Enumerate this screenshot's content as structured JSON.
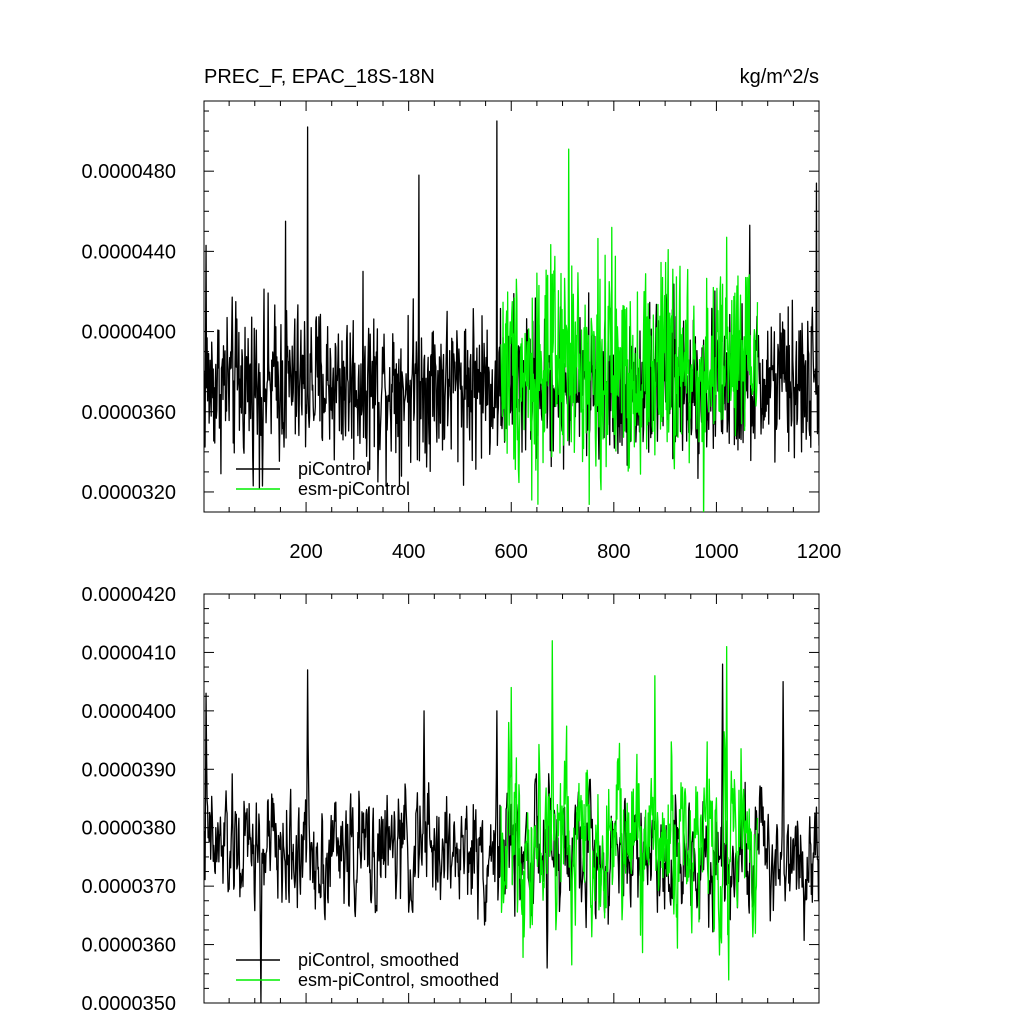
{
  "chart_data": [
    {
      "type": "line",
      "title": "PREC_F, EPAC_18S-18N",
      "units": "kg/m^2/s",
      "xlabel": "",
      "ylabel": "",
      "xlim": [
        1,
        1200
      ],
      "ylim": [
        3.1e-05,
        5.15e-05
      ],
      "xticks": [
        200,
        400,
        600,
        800,
        1000,
        1200
      ],
      "xtick_labels": [
        "200",
        "400",
        "600",
        "800",
        "1000",
        "1200"
      ],
      "yticks": [
        3.2e-05,
        3.6e-05,
        4e-05,
        4.4e-05,
        4.8e-05
      ],
      "ytick_labels": [
        "0.0000320",
        "0.0000360",
        "0.0000400",
        "0.0000440",
        "0.0000480"
      ],
      "legend_position": "bottom-left",
      "series": [
        {
          "name": "piControl",
          "color": "#000000",
          "x_range": [
            1,
            1200
          ],
          "mean": 3.74e-05,
          "noise_amplitude": 2.4e-06,
          "peaks": [
            {
              "x": 5,
              "y": 4.43e-05
            },
            {
              "x": 203,
              "y": 5.02e-05
            },
            {
              "x": 160,
              "y": 4.55e-05
            },
            {
              "x": 420,
              "y": 4.78e-05
            },
            {
              "x": 572,
              "y": 5.05e-05
            },
            {
              "x": 1065,
              "y": 4.53e-05
            },
            {
              "x": 1195,
              "y": 4.74e-05
            },
            {
              "x": 115,
              "y": 3.23e-05
            },
            {
              "x": 340,
              "y": 3.25e-05
            }
          ]
        },
        {
          "name": "esm-piControl",
          "color": "#00ee00",
          "x_range": [
            580,
            1080
          ],
          "mean": 3.82e-05,
          "noise_amplitude": 3.3e-06,
          "peaks": [
            {
              "x": 712,
              "y": 4.91e-05
            },
            {
              "x": 975,
              "y": 3.03e-05
            },
            {
              "x": 640,
              "y": 3.16e-05
            },
            {
              "x": 1020,
              "y": 4.47e-05
            }
          ]
        }
      ]
    },
    {
      "type": "line",
      "title": "",
      "xlabel": "",
      "ylabel": "",
      "xlim": [
        1,
        1200
      ],
      "ylim": [
        3.5e-05,
        4.2e-05
      ],
      "xticks": [
        200,
        400,
        600,
        800,
        1000,
        1200
      ],
      "yticks": [
        3.5e-05,
        3.6e-05,
        3.7e-05,
        3.8e-05,
        3.9e-05,
        4e-05,
        4.1e-05,
        4.2e-05
      ],
      "ytick_labels": [
        "0.0000350",
        "0.0000360",
        "0.0000370",
        "0.0000380",
        "0.0000390",
        "0.0000400",
        "0.0000410",
        "0.0000420"
      ],
      "legend_position": "bottom-left",
      "series": [
        {
          "name": "piControl, smoothed",
          "color": "#000000",
          "x_range": [
            1,
            1200
          ],
          "mean": 3.76e-05,
          "noise_amplitude": 7e-07,
          "peaks": [
            {
              "x": 5,
              "y": 4.03e-05
            },
            {
              "x": 203,
              "y": 4.07e-05
            },
            {
              "x": 572,
              "y": 4e-05
            },
            {
              "x": 1012,
              "y": 4.08e-05
            },
            {
              "x": 1130,
              "y": 4.05e-05
            },
            {
              "x": 112,
              "y": 3.5e-05
            },
            {
              "x": 670,
              "y": 3.56e-05
            },
            {
              "x": 430,
              "y": 4e-05
            }
          ]
        },
        {
          "name": "esm-piControl, smoothed",
          "color": "#00ee00",
          "x_range": [
            580,
            1080
          ],
          "mean": 3.78e-05,
          "noise_amplitude": 1e-06,
          "peaks": [
            {
              "x": 680,
              "y": 4.12e-05
            },
            {
              "x": 1020,
              "y": 4.11e-05
            },
            {
              "x": 880,
              "y": 4.06e-05
            },
            {
              "x": 600,
              "y": 4.04e-05
            }
          ]
        }
      ]
    }
  ]
}
